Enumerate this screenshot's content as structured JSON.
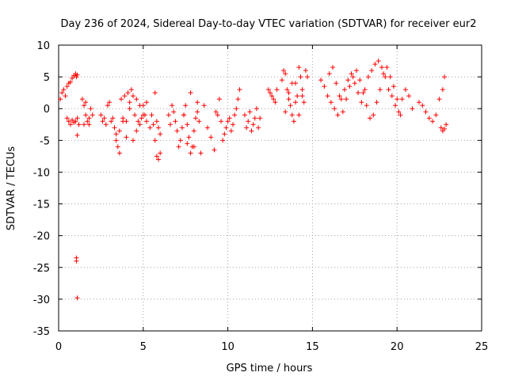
{
  "chart_data": {
    "type": "scatter",
    "title": "Day 236 of 2024, Sidereal Day-to-day VTEC variation (SDTVAR) for receiver eur2",
    "xlabel": "GPS time / hours",
    "ylabel": "SDTVAR / TECUs",
    "xlim": [
      0,
      25
    ],
    "ylim": [
      -35,
      10
    ],
    "grid": true,
    "marker": "+",
    "color": "#ff0000",
    "x_ticks": [
      "0",
      "5",
      "10",
      "15",
      "20",
      "25"
    ],
    "y_ticks": [
      "10",
      "5",
      "0",
      "-5",
      "-10",
      "-15",
      "-20",
      "-25",
      "-30",
      "-35"
    ],
    "series": [
      {
        "name": "SDTVAR",
        "x": [
          0.1,
          0.2,
          0.3,
          0.4,
          0.5,
          0.6,
          0.7,
          0.8,
          0.9,
          1.0,
          1.05,
          1.1,
          0.5,
          0.6,
          0.7,
          0.8,
          0.9,
          1.0,
          1.1,
          1.2,
          1.1,
          1.05,
          1.05,
          1.1,
          1.4,
          1.5,
          1.6,
          1.7,
          1.8,
          1.9,
          2.0,
          1.5,
          1.6,
          1.8,
          2.5,
          2.6,
          2.7,
          2.8,
          2.9,
          3.0,
          3.1,
          3.2,
          3.3,
          3.4,
          3.4,
          3.5,
          3.6,
          3.7,
          3.8,
          3.9,
          4.0,
          4.1,
          4.2,
          4.3,
          4.4,
          4.5,
          4.6,
          4.7,
          4.8,
          4.9,
          5.0,
          5.1,
          5.2,
          3.6,
          3.8,
          4.0,
          4.2,
          4.4,
          4.6,
          4.8,
          5.0,
          5.2,
          5.4,
          5.5,
          5.6,
          5.7,
          5.8,
          5.9,
          6.0,
          5.7,
          5.8,
          5.9,
          6.0,
          6.5,
          6.6,
          6.7,
          6.8,
          6.9,
          7.0,
          7.1,
          7.2,
          7.3,
          7.4,
          7.5,
          7.6,
          7.7,
          7.8,
          7.9,
          8.0,
          8.1,
          8.2,
          8.3,
          7.4,
          7.6,
          7.8,
          8.0,
          8.2,
          8.4,
          8.6,
          8.8,
          9.0,
          9.2,
          9.3,
          9.4,
          9.5,
          9.6,
          9.7,
          9.8,
          9.9,
          10.0,
          10.1,
          10.2,
          10.3,
          10.4,
          10.5,
          10.6,
          10.7,
          11.0,
          11.1,
          11.2,
          11.3,
          11.4,
          11.5,
          11.6,
          11.7,
          11.8,
          11.9,
          12.4,
          12.5,
          12.6,
          12.7,
          12.8,
          12.9,
          13.2,
          13.3,
          13.4,
          13.5,
          13.6,
          13.7,
          13.8,
          13.9,
          14.0,
          14.1,
          14.2,
          14.3,
          14.4,
          14.5,
          14.6,
          14.7,
          13.4,
          13.6,
          13.8,
          14.0,
          14.2,
          14.4,
          15.5,
          15.7,
          15.9,
          16.1,
          16.3,
          16.5,
          16.7,
          16.9,
          17.1,
          17.3,
          17.5,
          17.7,
          17.9,
          18.1,
          18.3,
          18.5,
          18.7,
          18.9,
          19.1,
          19.3,
          19.5,
          19.7,
          19.9,
          20.1,
          20.3,
          20.5,
          20.7,
          20.9,
          16.0,
          16.2,
          16.4,
          16.6,
          16.8,
          17.0,
          17.2,
          17.4,
          17.6,
          17.8,
          18.0,
          18.2,
          18.4,
          18.6,
          18.8,
          19.0,
          19.2,
          19.4,
          19.6,
          19.8,
          20.0,
          20.2,
          21.3,
          21.5,
          21.7,
          21.9,
          22.1,
          22.3,
          22.5,
          22.7,
          22.8,
          22.9,
          22.6,
          22.7,
          22.8
        ],
        "y": [
          1.5,
          2.5,
          3.0,
          2.0,
          3.5,
          4.0,
          4.2,
          4.8,
          5.2,
          5.5,
          5.0,
          5.3,
          -1.5,
          -2.0,
          -2.5,
          -1.8,
          -2.2,
          -2.0,
          -1.5,
          -2.5,
          -4.2,
          -23.5,
          -24.0,
          -29.8,
          1.5,
          0.5,
          -1.0,
          -2.0,
          -2.5,
          0.0,
          -1.0,
          -2.5,
          1.0,
          -1.5,
          -1.0,
          -2.0,
          -1.5,
          -2.5,
          0.5,
          1.0,
          -2.0,
          -1.5,
          -3.0,
          -4.0,
          -5.0,
          -6.0,
          -7.0,
          1.5,
          -1.5,
          2.0,
          -2.0,
          2.5,
          1.0,
          3.0,
          2.0,
          -1.0,
          1.5,
          -2.0,
          0.5,
          -1.5,
          0.5,
          -1.0,
          1.0,
          -3.5,
          -2.0,
          -4.5,
          0.0,
          -5.0,
          -3.5,
          -2.5,
          -1.0,
          -2.0,
          -3.0,
          -1.0,
          -2.5,
          -5.0,
          -7.5,
          -8.0,
          -7.0,
          2.5,
          -2.0,
          -3.0,
          -4.0,
          -1.0,
          -2.5,
          0.5,
          -0.5,
          -2.0,
          -3.5,
          -6.0,
          -5.0,
          -3.0,
          -1.0,
          0.5,
          -2.5,
          -4.5,
          -7.0,
          -6.0,
          -3.5,
          -1.5,
          1.0,
          -2.0,
          -1.0,
          -5.5,
          2.5,
          -6.0,
          -0.5,
          -7.0,
          0.5,
          -3.0,
          -4.5,
          -6.5,
          -0.5,
          -1.0,
          1.5,
          -2.0,
          -5.0,
          -4.0,
          -3.0,
          -2.0,
          -1.5,
          -3.5,
          -2.5,
          -1.0,
          0.0,
          1.5,
          3.0,
          -1.0,
          -3.0,
          -2.0,
          -0.5,
          -3.5,
          -2.5,
          -1.5,
          0.0,
          -3.0,
          -1.5,
          3.0,
          2.5,
          2.0,
          1.5,
          1.0,
          3.0,
          4.5,
          6.0,
          5.5,
          3.0,
          1.5,
          0.5,
          -1.0,
          -2.0,
          4.0,
          2.0,
          6.5,
          5.0,
          3.0,
          1.0,
          6.0,
          5.0,
          -0.5,
          2.5,
          4.0,
          1.0,
          -1.0,
          2.0,
          4.5,
          3.5,
          2.0,
          1.0,
          0.0,
          -1.0,
          1.5,
          3.0,
          4.5,
          5.5,
          4.0,
          2.5,
          1.0,
          3.0,
          5.0,
          6.0,
          7.0,
          7.5,
          6.5,
          5.0,
          3.0,
          2.0,
          0.5,
          -0.5,
          1.5,
          3.0,
          2.0,
          0.0,
          5.5,
          6.5,
          4.0,
          2.0,
          -0.5,
          1.5,
          3.5,
          5.0,
          6.0,
          4.5,
          2.5,
          0.5,
          -1.5,
          -1.0,
          1.0,
          3.0,
          5.5,
          6.5,
          5.0,
          3.5,
          1.5,
          -1.0,
          1.0,
          0.5,
          -0.5,
          -1.5,
          -2.0,
          -1.0,
          1.5,
          3.0,
          5.0,
          -2.5,
          -3.0,
          -3.5,
          -3.2
        ]
      }
    ]
  }
}
